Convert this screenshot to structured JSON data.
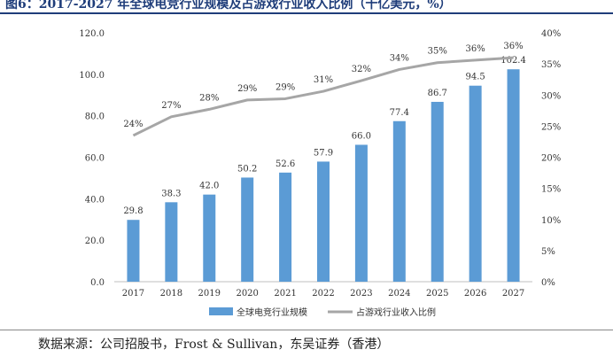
{
  "figure": {
    "title": "图6：2017-2027 年全球电竞行业规模及占游戏行业收入比例（十亿美元，%）",
    "source": "数据来源：公司招股书，Frost & Sullivan，东吴证券（香港）"
  },
  "colors": {
    "bar": "#5b9bd5",
    "line": "#a6a6a6",
    "text": "#333333",
    "title": "#1f3d7a"
  },
  "chart_data": {
    "type": "bar",
    "categories": [
      "2017",
      "2018",
      "2019",
      "2020",
      "2021",
      "2022",
      "2023",
      "2024",
      "2025",
      "2026",
      "2027"
    ],
    "series": [
      {
        "name": "全球电竞行业规模",
        "type": "bar",
        "axis": "left",
        "values": [
          29.8,
          38.3,
          42.0,
          50.2,
          52.6,
          57.9,
          66.0,
          77.4,
          86.7,
          94.5,
          102.4
        ],
        "labels": [
          "29.8",
          "38.3",
          "42.0",
          "50.2",
          "52.6",
          "57.9",
          "66.0",
          "77.4",
          "86.7",
          "94.5",
          "102.4"
        ]
      },
      {
        "name": "占游戏行业收入比例",
        "type": "line",
        "axis": "right",
        "values": [
          23.5,
          26.5,
          27.7,
          29.2,
          29.4,
          30.6,
          32.3,
          34.1,
          35.2,
          35.6,
          36.0
        ],
        "labels": [
          "24%",
          "27%",
          "28%",
          "29%",
          "29%",
          "31%",
          "32%",
          "34%",
          "35%",
          "36%",
          "36%"
        ]
      }
    ],
    "y_left": {
      "min": 0,
      "max": 120,
      "ticks": [
        "0.0",
        "20.0",
        "40.0",
        "60.0",
        "80.0",
        "100.0",
        "120.0"
      ]
    },
    "y_right": {
      "min": 0,
      "max": 40,
      "ticks": [
        "0%",
        "5%",
        "10%",
        "15%",
        "20%",
        "25%",
        "30%",
        "35%",
        "40%"
      ]
    },
    "legend_position": "bottom",
    "grid": false
  }
}
